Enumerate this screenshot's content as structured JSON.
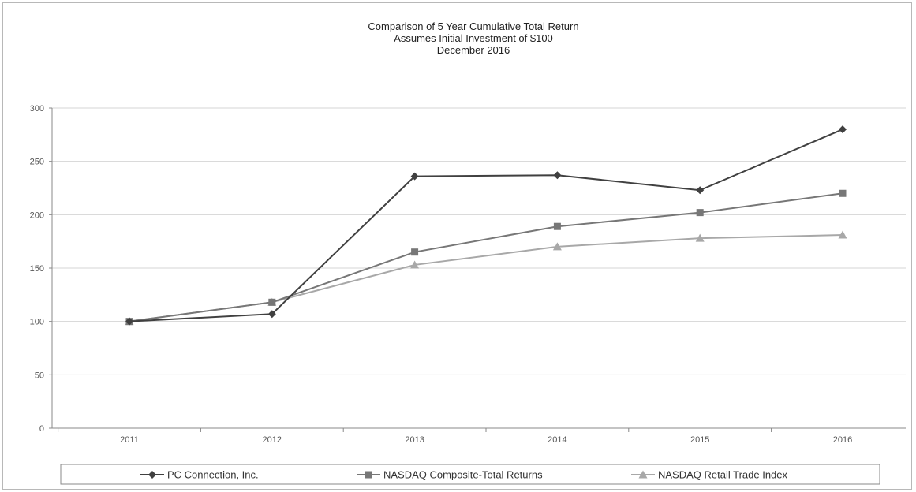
{
  "chart_data": {
    "type": "line",
    "title": [
      "Comparison of 5 Year Cumulative Total Return",
      "Assumes Initial Investment of $100",
      "December 2016"
    ],
    "categories": [
      "2011",
      "2012",
      "2013",
      "2014",
      "2015",
      "2016"
    ],
    "ylim": [
      0,
      300
    ],
    "yticks": [
      "0",
      "50",
      "100",
      "150",
      "200",
      "250",
      "300"
    ],
    "grid": true,
    "legend": "bottom",
    "series": [
      {
        "name": "PC Connection, Inc.",
        "values": [
          100,
          107,
          236,
          237,
          223,
          280
        ],
        "color": "#404040",
        "marker": "diamond"
      },
      {
        "name": "NASDAQ Composite-Total Returns",
        "values": [
          100,
          118,
          165,
          189,
          202,
          220
        ],
        "color": "#777777",
        "marker": "square"
      },
      {
        "name": "NASDAQ Retail Trade Index",
        "values": [
          100,
          118,
          153,
          170,
          178,
          181
        ],
        "color": "#a8a8a8",
        "marker": "triangle"
      }
    ]
  }
}
